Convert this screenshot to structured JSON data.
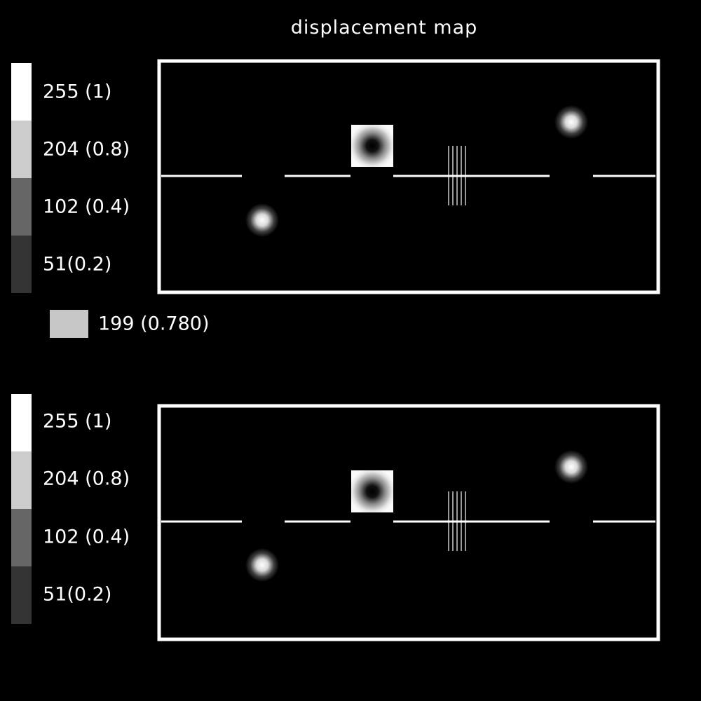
{
  "title": "displacement map",
  "scale_top": {
    "swatches": [
      {
        "value": 255,
        "color": "#ffffff",
        "label": "255 (1)"
      },
      {
        "value": 204,
        "color": "#cccccc",
        "label": "204 (0.8)"
      },
      {
        "value": 102,
        "color": "#666666",
        "label": "102 (0.4)"
      },
      {
        "value": 51,
        "color": "#333333",
        "label": "51(0.2)"
      }
    ]
  },
  "reference": {
    "value": 199,
    "color": "#c7c7c7",
    "label": "199 (0.780)"
  },
  "scale_bottom": {
    "swatches": [
      {
        "value": 255,
        "color": "#ffffff",
        "label": "255 (1)"
      },
      {
        "value": 204,
        "color": "#cccccc",
        "label": "204 (0.8)"
      },
      {
        "value": 102,
        "color": "#666666",
        "label": "102 (0.4)"
      },
      {
        "value": 51,
        "color": "#333333",
        "label": "51(0.2)"
      }
    ]
  }
}
